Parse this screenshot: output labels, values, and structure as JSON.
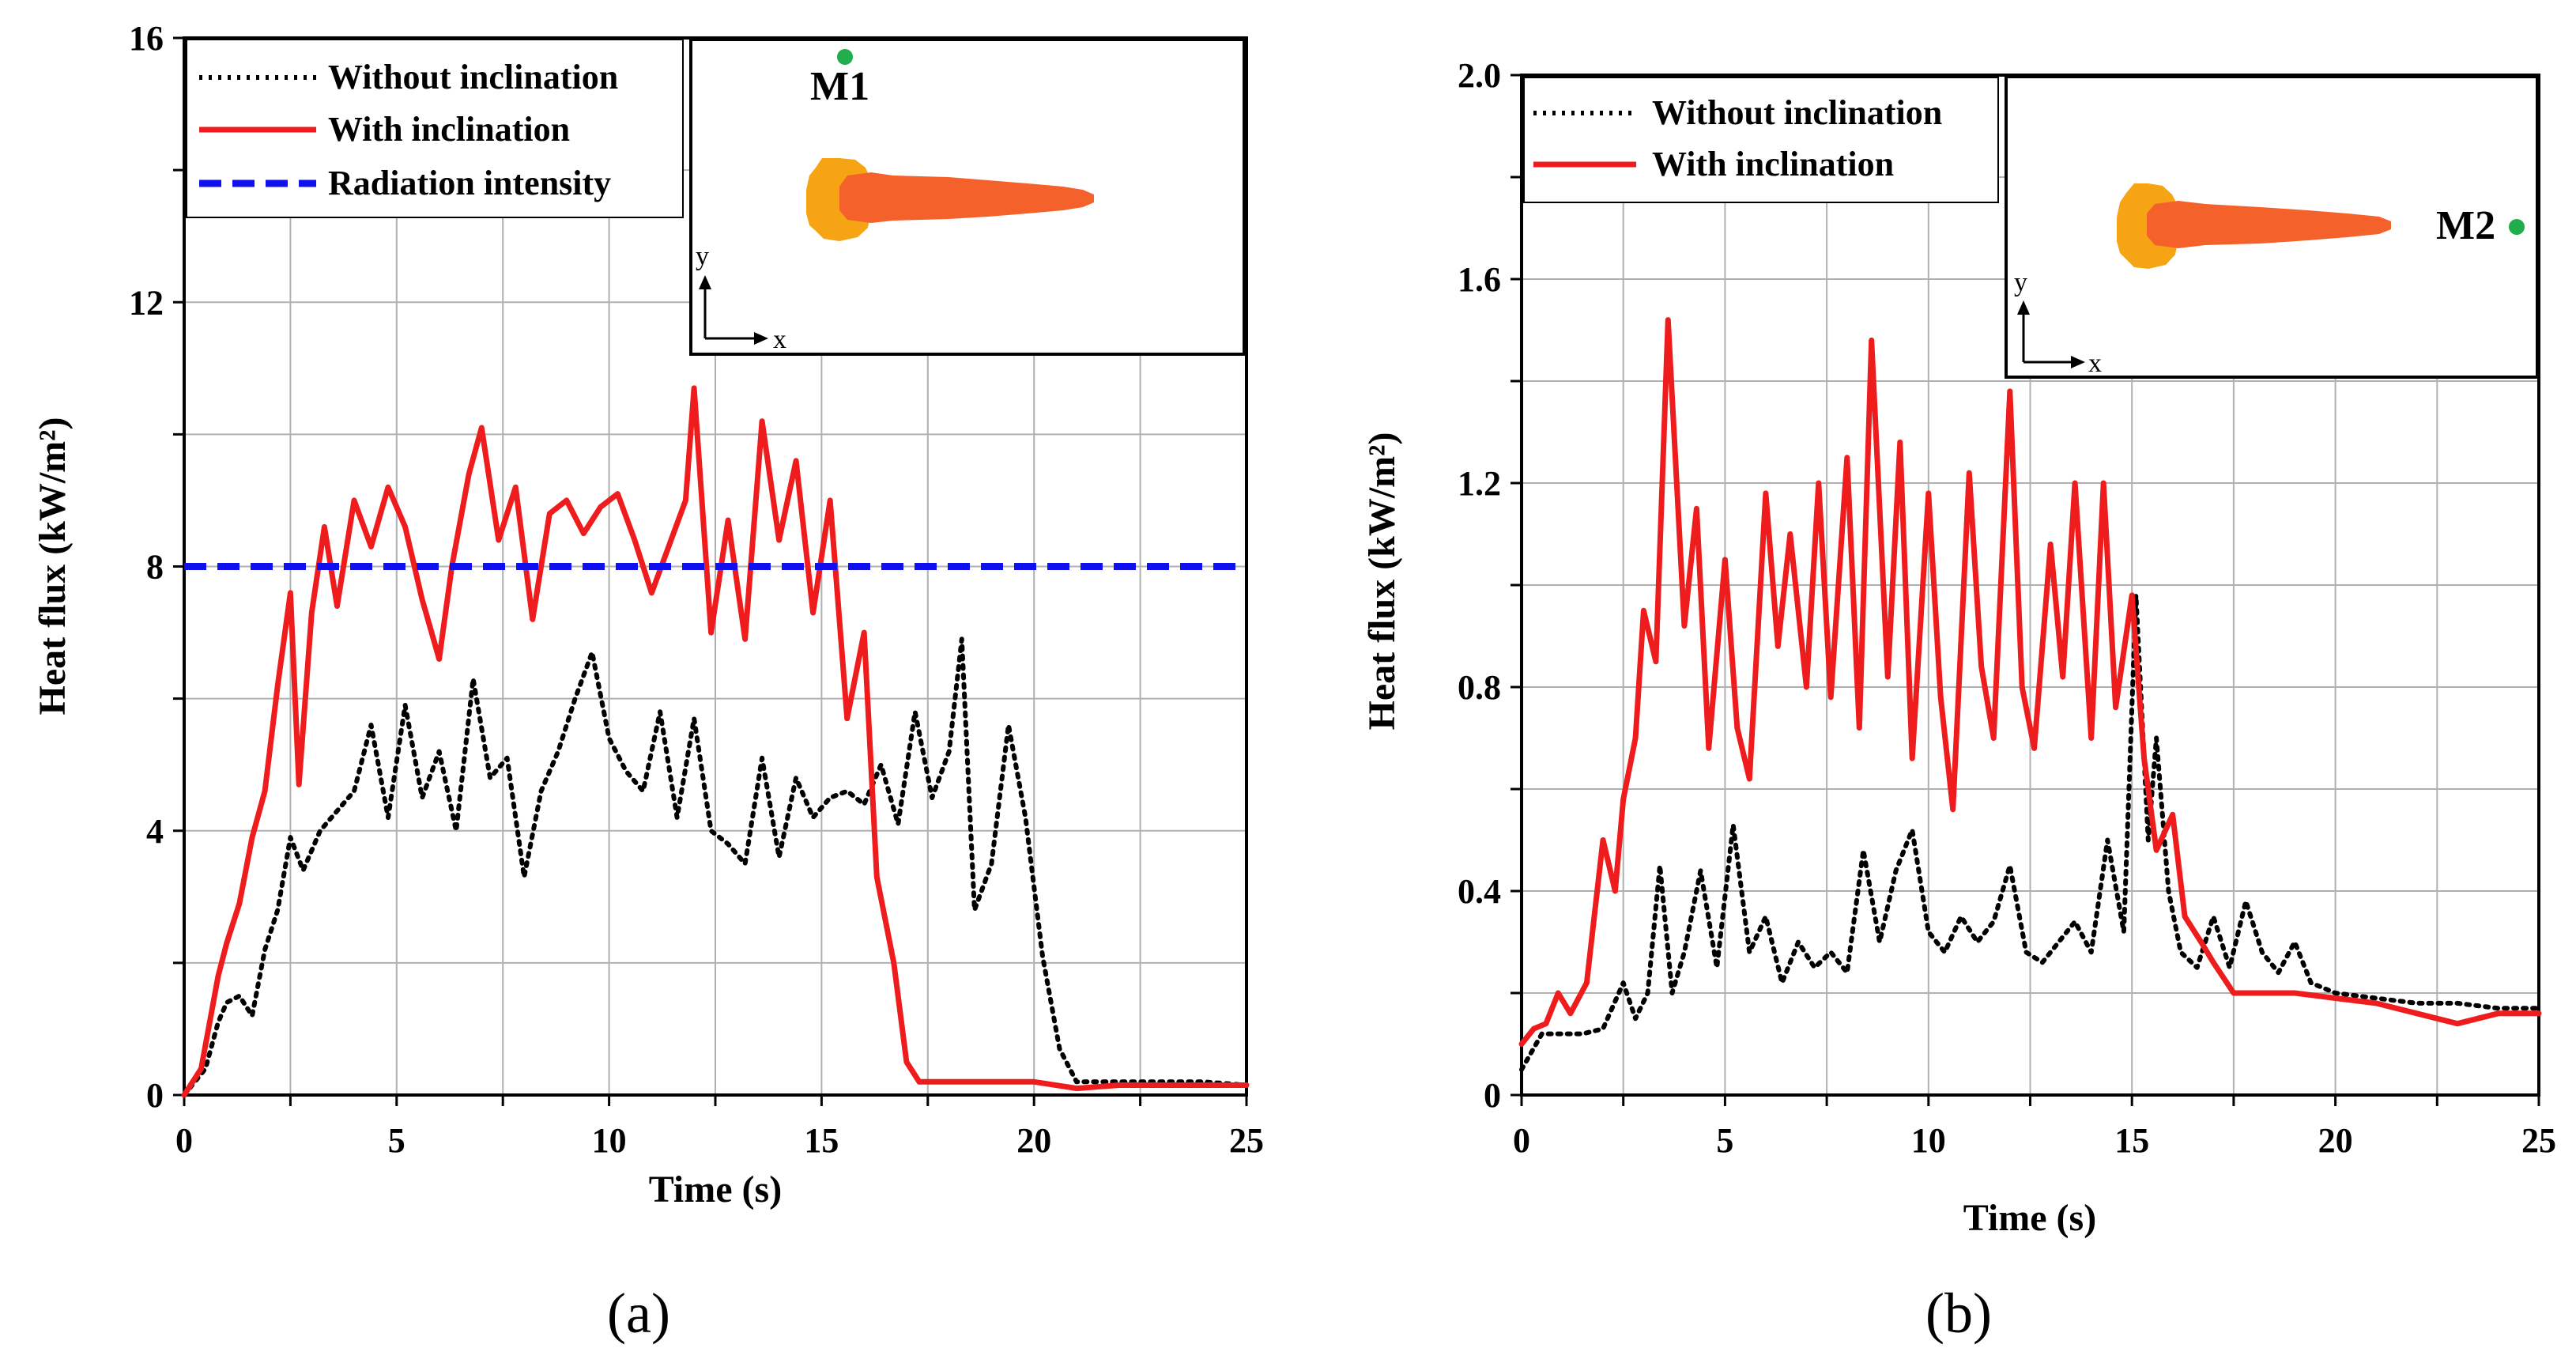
{
  "chart_data": [
    {
      "type": "line",
      "panel_label": "(a)",
      "xlabel": "Time (s)",
      "ylabel": "Heat flux (kW/m²)",
      "xlim": [
        0,
        25
      ],
      "ylim": [
        0,
        16
      ],
      "xticks": [
        "0",
        "5",
        "10",
        "15",
        "20",
        "25"
      ],
      "yticks": [
        "0",
        "4",
        "8",
        "12",
        "16"
      ],
      "grid": true,
      "legend_position": "top-left",
      "series": [
        {
          "name": "Without inclination",
          "style": "dotted",
          "color": "#000000",
          "x": [
            0,
            0.5,
            0.8,
            1.0,
            1.3,
            1.6,
            1.9,
            2.2,
            2.5,
            2.8,
            3.2,
            3.6,
            4.0,
            4.4,
            4.8,
            5.2,
            5.6,
            6.0,
            6.4,
            6.8,
            7.2,
            7.6,
            8.0,
            8.4,
            8.8,
            9.2,
            9.6,
            10.0,
            10.4,
            10.8,
            11.2,
            11.6,
            12.0,
            12.4,
            12.8,
            13.2,
            13.6,
            14.0,
            14.4,
            14.8,
            15.2,
            15.6,
            16.0,
            16.4,
            16.8,
            17.2,
            17.6,
            18.0,
            18.3,
            18.6,
            19.0,
            19.4,
            19.8,
            20.2,
            20.6,
            21.0,
            22.0,
            23.0,
            24.0,
            25.0
          ],
          "y": [
            0,
            0.4,
            1.1,
            1.4,
            1.5,
            1.2,
            2.2,
            2.8,
            3.9,
            3.4,
            4.0,
            4.3,
            4.6,
            5.6,
            4.2,
            5.9,
            4.5,
            5.2,
            4.0,
            6.3,
            4.8,
            5.1,
            3.3,
            4.6,
            5.2,
            6.0,
            6.7,
            5.4,
            4.9,
            4.6,
            5.8,
            4.2,
            5.7,
            4.0,
            3.8,
            3.5,
            5.1,
            3.6,
            4.8,
            4.2,
            4.5,
            4.6,
            4.4,
            5.0,
            4.1,
            5.8,
            4.5,
            5.2,
            6.9,
            2.8,
            3.5,
            5.6,
            4.2,
            2.1,
            0.7,
            0.2,
            0.2,
            0.2,
            0.2,
            0.15
          ]
        },
        {
          "name": "With inclination",
          "style": "solid",
          "color": "#ee1c1c",
          "x": [
            0,
            0.4,
            0.8,
            1.0,
            1.3,
            1.6,
            1.9,
            2.2,
            2.5,
            2.7,
            3.0,
            3.3,
            3.6,
            4.0,
            4.4,
            4.8,
            5.2,
            5.6,
            6.0,
            6.3,
            6.7,
            7.0,
            7.4,
            7.8,
            8.2,
            8.6,
            9.0,
            9.4,
            9.8,
            10.2,
            10.6,
            11.0,
            11.4,
            11.8,
            12.0,
            12.4,
            12.8,
            13.2,
            13.6,
            14.0,
            14.4,
            14.8,
            15.2,
            15.6,
            16.0,
            16.3,
            16.7,
            17.0,
            17.3,
            18.0,
            19.0,
            20.0,
            21.0,
            22.0,
            23.0,
            24.0,
            25.0
          ],
          "y": [
            0,
            0.4,
            1.8,
            2.3,
            2.9,
            3.9,
            4.6,
            6.2,
            7.6,
            4.7,
            7.3,
            8.6,
            7.4,
            9.0,
            8.3,
            9.2,
            8.6,
            7.5,
            6.6,
            8.0,
            9.4,
            10.1,
            8.4,
            9.2,
            7.2,
            8.8,
            9.0,
            8.5,
            8.9,
            9.1,
            8.4,
            7.6,
            8.3,
            9.0,
            10.7,
            7.0,
            8.7,
            6.9,
            10.2,
            8.4,
            9.6,
            7.3,
            9.0,
            5.7,
            7.0,
            3.3,
            2.0,
            0.5,
            0.2,
            0.2,
            0.2,
            0.2,
            0.1,
            0.15,
            0.15,
            0.15,
            0.15
          ]
        },
        {
          "name": "Radiation intensity",
          "style": "dashed",
          "color": "#1010ee",
          "x": [
            0,
            25
          ],
          "y": [
            8,
            8
          ]
        }
      ],
      "inset": {
        "label": "M1",
        "axis_x": "x",
        "axis_y": "y",
        "point_color": "#1fae4b"
      }
    },
    {
      "type": "line",
      "panel_label": "(b)",
      "xlabel": "Time (s)",
      "ylabel": "Heat flux (kW/m²)",
      "xlim": [
        0,
        25
      ],
      "ylim": [
        0,
        2.0
      ],
      "xticks": [
        "0",
        "5",
        "10",
        "15",
        "20",
        "25"
      ],
      "yticks": [
        "0",
        "0.4",
        "0.8",
        "1.2",
        "1.6",
        "2.0"
      ],
      "grid": true,
      "legend_position": "top-left",
      "series": [
        {
          "name": "Without inclination",
          "style": "dotted",
          "color": "#000000",
          "x": [
            0,
            0.5,
            1.0,
            1.5,
            2.0,
            2.5,
            2.8,
            3.1,
            3.4,
            3.7,
            4.0,
            4.4,
            4.8,
            5.2,
            5.6,
            6.0,
            6.4,
            6.8,
            7.2,
            7.6,
            8.0,
            8.4,
            8.8,
            9.2,
            9.6,
            10.0,
            10.4,
            10.8,
            11.2,
            11.6,
            12.0,
            12.4,
            12.8,
            13.2,
            13.6,
            14.0,
            14.4,
            14.8,
            15.1,
            15.4,
            15.6,
            15.9,
            16.2,
            16.6,
            17.0,
            17.4,
            17.8,
            18.2,
            18.6,
            19.0,
            19.4,
            20.0,
            21.0,
            22.0,
            23.0,
            24.0,
            25.0
          ],
          "y": [
            0.05,
            0.12,
            0.12,
            0.12,
            0.13,
            0.22,
            0.15,
            0.2,
            0.45,
            0.2,
            0.28,
            0.44,
            0.25,
            0.53,
            0.28,
            0.35,
            0.22,
            0.3,
            0.25,
            0.28,
            0.24,
            0.48,
            0.3,
            0.44,
            0.52,
            0.32,
            0.28,
            0.35,
            0.3,
            0.34,
            0.45,
            0.28,
            0.26,
            0.3,
            0.34,
            0.28,
            0.5,
            0.32,
            0.98,
            0.5,
            0.7,
            0.4,
            0.28,
            0.25,
            0.35,
            0.25,
            0.38,
            0.28,
            0.24,
            0.3,
            0.22,
            0.2,
            0.19,
            0.18,
            0.18,
            0.17,
            0.17
          ]
        },
        {
          "name": "With inclination",
          "style": "solid",
          "color": "#ee1c1c",
          "x": [
            0,
            0.3,
            0.6,
            0.9,
            1.2,
            1.6,
            2.0,
            2.3,
            2.5,
            2.8,
            3.0,
            3.3,
            3.6,
            4.0,
            4.3,
            4.6,
            5.0,
            5.3,
            5.6,
            6.0,
            6.3,
            6.6,
            7.0,
            7.3,
            7.6,
            8.0,
            8.3,
            8.6,
            9.0,
            9.3,
            9.6,
            10.0,
            10.3,
            10.6,
            11.0,
            11.3,
            11.6,
            12.0,
            12.3,
            12.6,
            13.0,
            13.3,
            13.6,
            14.0,
            14.3,
            14.6,
            15.0,
            15.3,
            15.6,
            16.0,
            16.3,
            16.7,
            17.0,
            17.5,
            18.0,
            19.0,
            20.0,
            21.0,
            22.0,
            23.0,
            24.0,
            25.0
          ],
          "y": [
            0.1,
            0.13,
            0.14,
            0.2,
            0.16,
            0.22,
            0.5,
            0.4,
            0.58,
            0.7,
            0.95,
            0.85,
            1.52,
            0.92,
            1.15,
            0.68,
            1.05,
            0.72,
            0.62,
            1.18,
            0.88,
            1.1,
            0.8,
            1.2,
            0.78,
            1.25,
            0.72,
            1.48,
            0.82,
            1.28,
            0.66,
            1.18,
            0.78,
            0.56,
            1.22,
            0.84,
            0.7,
            1.38,
            0.8,
            0.68,
            1.08,
            0.82,
            1.2,
            0.7,
            1.2,
            0.76,
            0.98,
            0.66,
            0.48,
            0.55,
            0.35,
            0.3,
            0.26,
            0.2,
            0.2,
            0.2,
            0.19,
            0.18,
            0.16,
            0.14,
            0.16,
            0.16
          ]
        }
      ],
      "inset": {
        "label": "M2",
        "axis_x": "x",
        "axis_y": "y",
        "point_color": "#1fae4b"
      }
    }
  ]
}
